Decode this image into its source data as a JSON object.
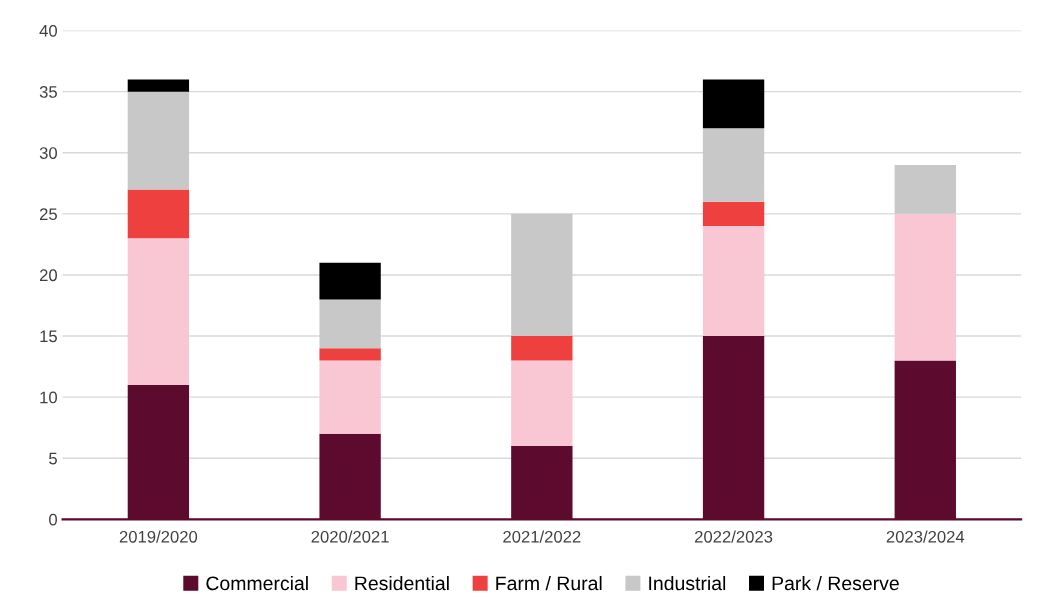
{
  "chart_data": {
    "type": "bar",
    "stacked": true,
    "categories": [
      "2019/2020",
      "2020/2021",
      "2021/2022",
      "2022/2023",
      "2023/2024"
    ],
    "series": [
      {
        "name": "Commercial",
        "color": "#5c0a2e",
        "values": [
          11,
          7,
          6,
          15,
          13
        ]
      },
      {
        "name": "Residential",
        "color": "#f9c6d3",
        "values": [
          12,
          6,
          7,
          9,
          12
        ]
      },
      {
        "name": "Farm / Rural",
        "color": "#ef4040",
        "values": [
          4,
          1,
          2,
          2,
          0
        ]
      },
      {
        "name": "Industrial",
        "color": "#c8c8c8",
        "values": [
          8,
          4,
          10,
          6,
          4
        ]
      },
      {
        "name": "Park / Reserve",
        "color": "#000000",
        "values": [
          1,
          3,
          0,
          4,
          0
        ]
      }
    ],
    "ylim": [
      0,
      40
    ],
    "yticks": [
      0,
      5,
      10,
      15,
      20,
      25,
      30,
      35,
      40
    ],
    "grid": "y",
    "legend": "bottom"
  }
}
